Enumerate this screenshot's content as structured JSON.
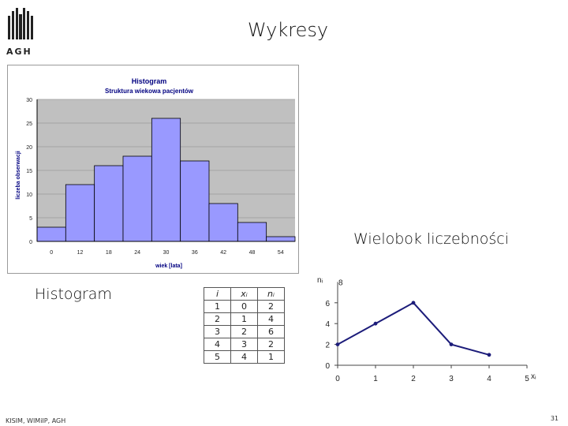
{
  "slide": {
    "title": "Wykresy",
    "logo_text": "AGH",
    "histogram_caption": "Histogram",
    "polygon_caption": "Wielobok liczebności",
    "footer_left": "KISIM, WIMiIP, AGH",
    "page_number": "31"
  },
  "colors": {
    "plot_bg": "#c0c0c0",
    "bar_fill": "#9999ff",
    "chart_title": "#000080",
    "line": "#1c1c7a"
  },
  "chart_data": [
    {
      "type": "bar",
      "title": "Histogram",
      "subtitle": "Struktura wiekowa pacjentów",
      "xlabel": "wiek [lata]",
      "ylabel": "liczeba obserwacji",
      "x_ticks": [
        "0",
        "12",
        "18",
        "24",
        "30",
        "36",
        "42",
        "48",
        "54"
      ],
      "y_ticks": [
        "0",
        "5",
        "10",
        "15",
        "20",
        "25",
        "30"
      ],
      "values": [
        3,
        12,
        16,
        18,
        26,
        17,
        8,
        4,
        1
      ],
      "ylim": [
        0,
        30
      ],
      "grid": true
    },
    {
      "type": "line",
      "y_axis_label": "nᵢ",
      "x_axis_label": "xᵢ",
      "x_ticks": [
        "0",
        "1",
        "2",
        "3",
        "4",
        "5"
      ],
      "y_ticks": [
        "0",
        "2",
        "4",
        "6"
      ],
      "top_tick": "8",
      "x": [
        0,
        1,
        2,
        3,
        4
      ],
      "y": [
        2,
        4,
        6,
        2,
        1
      ],
      "xlim": [
        0,
        5
      ],
      "ylim": [
        0,
        8
      ]
    }
  ],
  "table": {
    "headers": [
      "i",
      "xᵢ",
      "nᵢ"
    ],
    "rows": [
      [
        "1",
        "0",
        "2"
      ],
      [
        "2",
        "1",
        "4"
      ],
      [
        "3",
        "2",
        "6"
      ],
      [
        "4",
        "3",
        "2"
      ],
      [
        "5",
        "4",
        "1"
      ]
    ]
  }
}
